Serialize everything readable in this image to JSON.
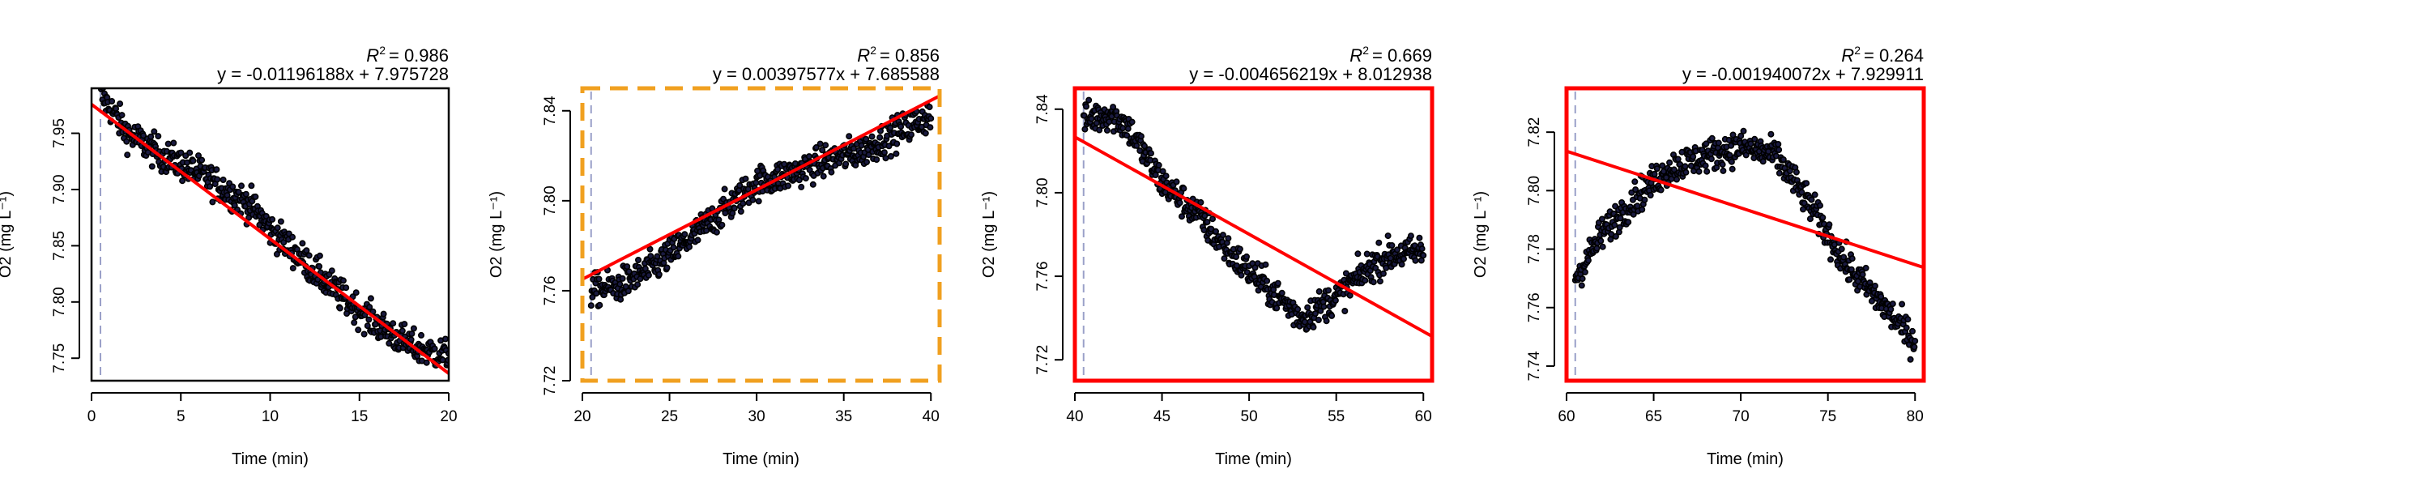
{
  "chart_data": [
    {
      "type": "scatter",
      "xlabel": "Time (min)",
      "ylabel": "O2 (mg L⁻¹)",
      "r2_label": "R",
      "r2_value": "= 0.986",
      "equation": "y = -0.01196188x + 7.975728",
      "xlim": [
        0,
        20
      ],
      "ylim": [
        7.73,
        7.99
      ],
      "x_ticks": [
        0,
        5,
        10,
        15,
        20
      ],
      "x_tick_labels": [
        "0",
        "5",
        "10",
        "15",
        "20"
      ],
      "y_ticks": [
        7.75,
        7.8,
        7.85,
        7.9,
        7.95
      ],
      "y_tick_labels": [
        "7.75",
        "7.80",
        "7.85",
        "7.90",
        "7.95"
      ],
      "vline_x": 0.5,
      "frame": "solid-black",
      "fit": {
        "slope": -0.01196188,
        "intercept": 7.975728
      },
      "series": [
        {
          "x": [
            0.5,
            2,
            4,
            6,
            8,
            9,
            10,
            12,
            14,
            16,
            18,
            20
          ],
          "y": [
            7.985,
            7.95,
            7.93,
            7.915,
            7.895,
            7.885,
            7.865,
            7.835,
            7.805,
            7.78,
            7.76,
            7.752
          ]
        }
      ]
    },
    {
      "type": "scatter",
      "xlabel": "Time (min)",
      "ylabel": "O2 (mg L⁻¹)",
      "r2_label": "R",
      "r2_value": "= 0.856",
      "equation": "y = 0.00397577x + 7.685588",
      "xlim": [
        20,
        40.5
      ],
      "ylim": [
        7.72,
        7.85
      ],
      "x_ticks": [
        20,
        25,
        30,
        35,
        40
      ],
      "x_tick_labels": [
        "20",
        "25",
        "30",
        "35",
        "40"
      ],
      "y_ticks": [
        7.72,
        7.76,
        7.8,
        7.84
      ],
      "y_tick_labels": [
        "7.72",
        "7.76",
        "7.80",
        "7.84"
      ],
      "vline_x": 20.5,
      "frame": "dashed-orange",
      "fit": {
        "slope": 0.00397577,
        "intercept": 7.685588
      },
      "series": [
        {
          "x": [
            20.5,
            22,
            24,
            26,
            28,
            30,
            32,
            34,
            36,
            38,
            40
          ],
          "y": [
            7.76,
            7.762,
            7.77,
            7.782,
            7.795,
            7.808,
            7.812,
            7.818,
            7.822,
            7.83,
            7.838
          ]
        }
      ]
    },
    {
      "type": "scatter",
      "xlabel": "Time (min)",
      "ylabel": "O2 (mg L⁻¹)",
      "r2_label": "R",
      "r2_value": "= 0.669",
      "equation": "y = -0.004656219x + 8.012938",
      "xlim": [
        40,
        60.5
      ],
      "ylim": [
        7.71,
        7.85
      ],
      "x_ticks": [
        40,
        45,
        50,
        55,
        60
      ],
      "x_tick_labels": [
        "40",
        "45",
        "50",
        "55",
        "60"
      ],
      "y_ticks": [
        7.72,
        7.76,
        7.8,
        7.84
      ],
      "y_tick_labels": [
        "7.72",
        "7.76",
        "7.80",
        "7.84"
      ],
      "vline_x": 40.5,
      "frame": "solid-red",
      "fit": {
        "slope": -0.004656219,
        "intercept": 8.012938
      },
      "series": [
        {
          "x": [
            40.5,
            42,
            43,
            45,
            47,
            49,
            51,
            53,
            55,
            57,
            58,
            60
          ],
          "y": [
            7.835,
            7.838,
            7.832,
            7.805,
            7.79,
            7.77,
            7.755,
            7.74,
            7.75,
            7.765,
            7.77,
            7.772
          ]
        }
      ]
    },
    {
      "type": "scatter",
      "xlabel": "Time (min)",
      "ylabel": "O2 (mg L⁻¹)",
      "r2_label": "R",
      "r2_value": "= 0.264",
      "equation": "y = -0.001940072x + 7.929911",
      "xlim": [
        60,
        80.5
      ],
      "ylim": [
        7.735,
        7.835
      ],
      "x_ticks": [
        60,
        65,
        70,
        75,
        80
      ],
      "x_tick_labels": [
        "60",
        "65",
        "70",
        "75",
        "80"
      ],
      "y_ticks": [
        7.74,
        7.76,
        7.78,
        7.8,
        7.82
      ],
      "y_tick_labels": [
        "7.74",
        "7.76",
        "7.78",
        "7.80",
        "7.82"
      ],
      "vline_x": 60.5,
      "frame": "solid-red",
      "fit": {
        "slope": -0.001940072,
        "intercept": 7.929911
      },
      "series": [
        {
          "x": [
            60.5,
            62,
            64,
            66,
            68,
            70,
            72,
            74,
            76,
            78,
            80
          ],
          "y": [
            7.77,
            7.785,
            7.798,
            7.808,
            7.812,
            7.815,
            7.812,
            7.795,
            7.775,
            7.762,
            7.748
          ]
        }
      ]
    }
  ],
  "colors": {
    "fit_line": "#ff0000",
    "points_fill": "#1a1a40",
    "points_stroke": "#000000",
    "vline": "#9aa0c8",
    "frame_black": "#000000",
    "frame_red": "#ff0000",
    "frame_orange": "#f0a020"
  }
}
